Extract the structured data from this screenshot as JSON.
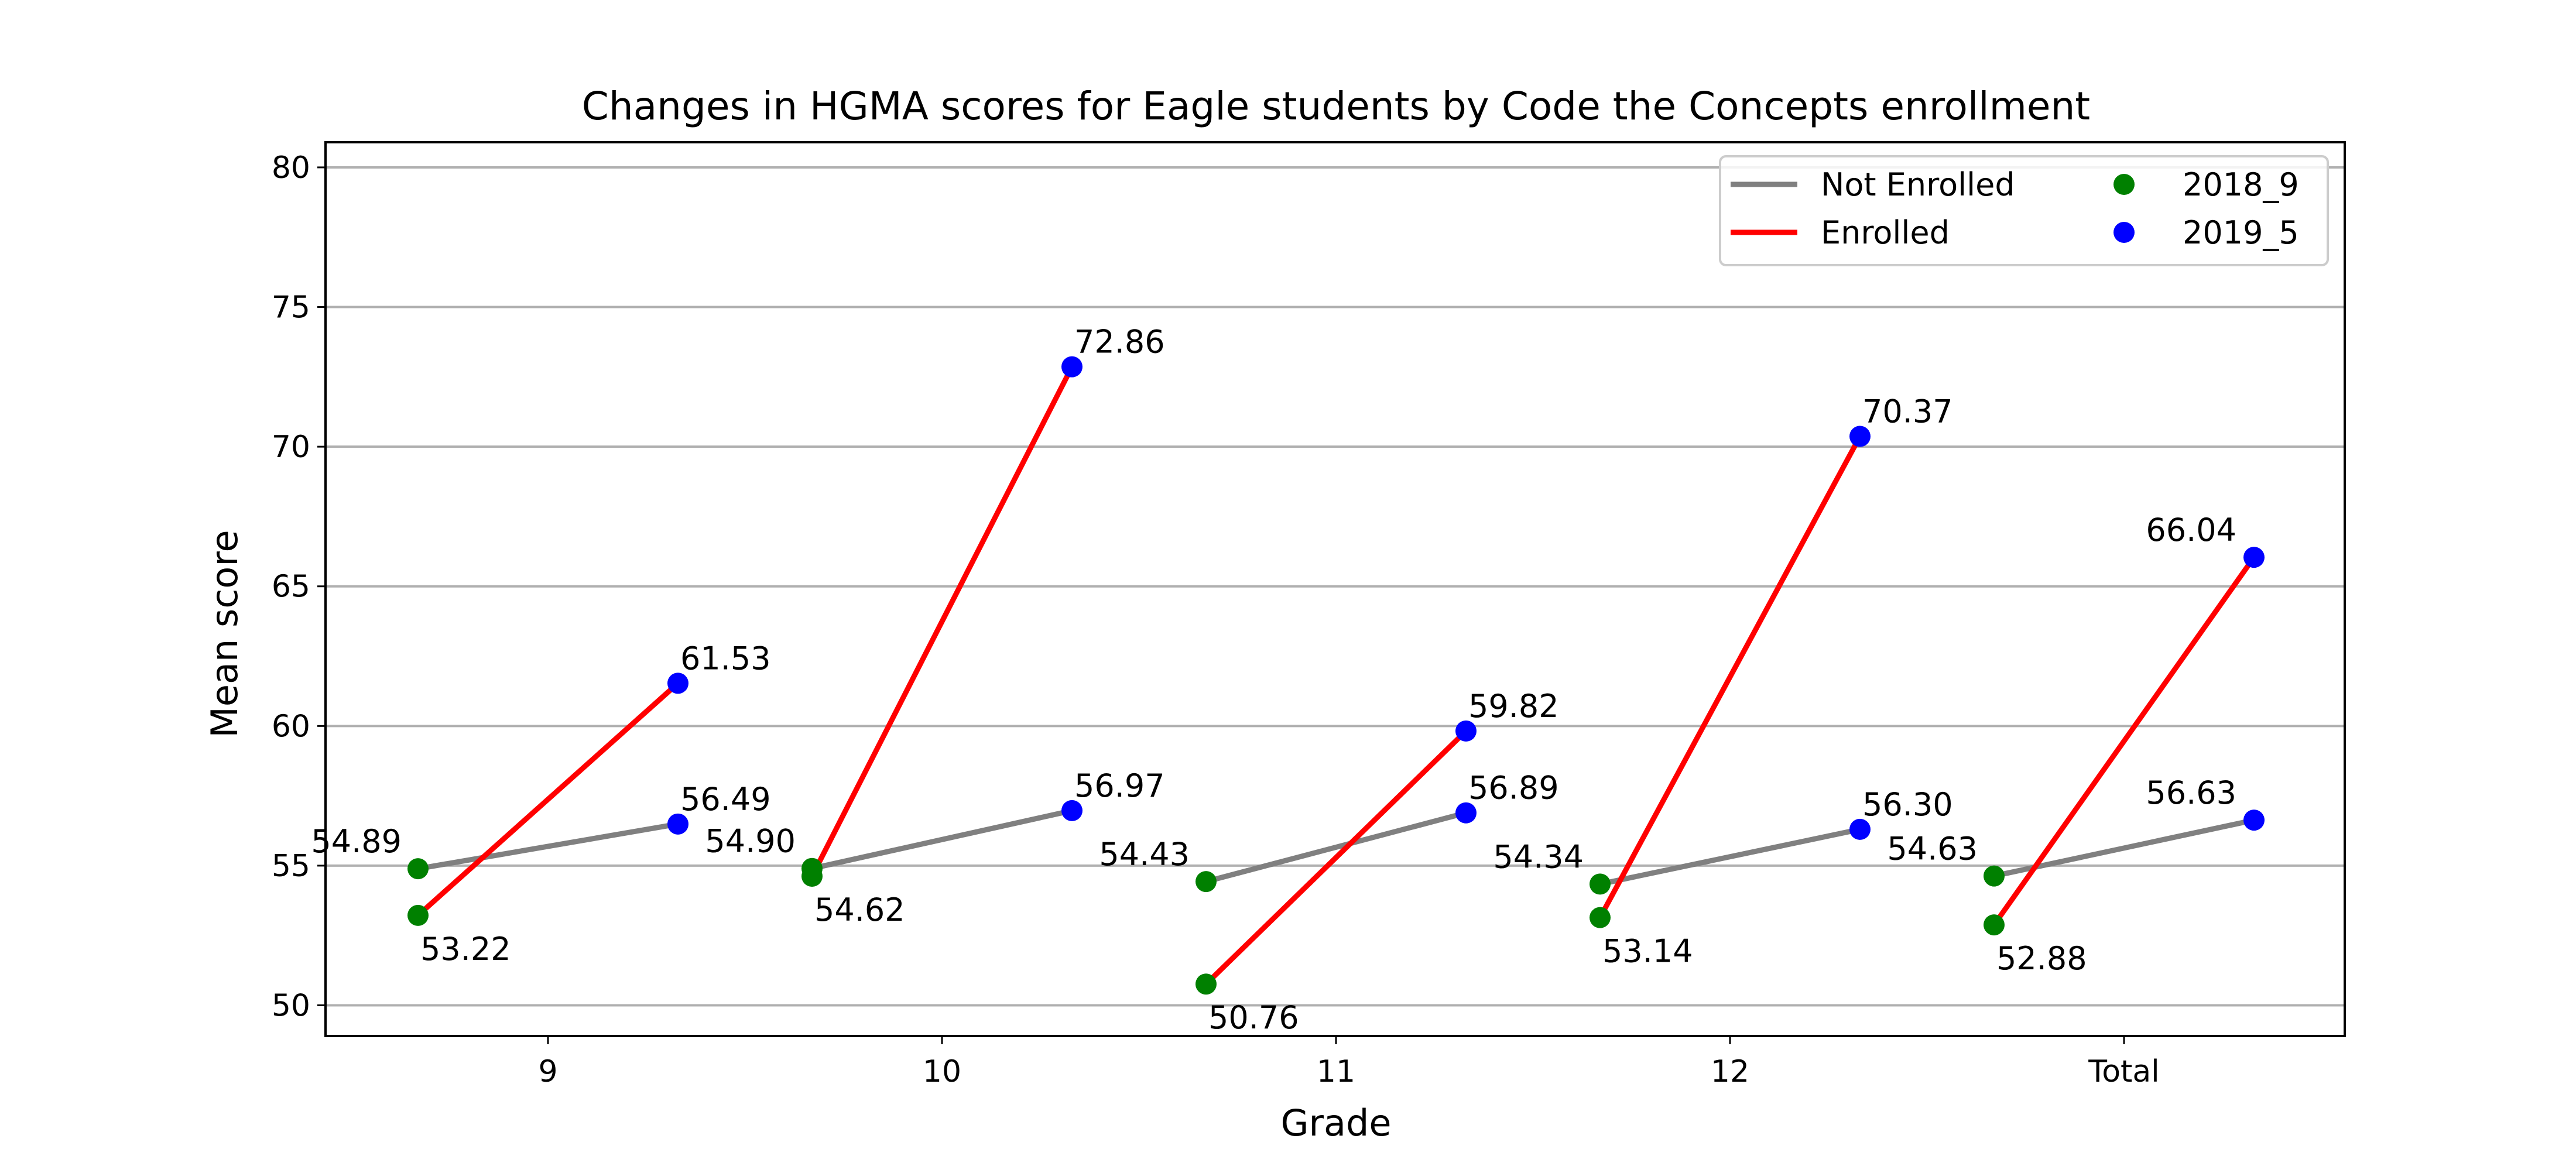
{
  "chart_data": {
    "type": "line",
    "title": "Changes in HGMA scores for Eagle students by Code the Concepts enrollment",
    "xlabel": "Grade",
    "ylabel": "Mean score",
    "categories": [
      "9",
      "10",
      "11",
      "12",
      "Total"
    ],
    "yticks": [
      "50",
      "55",
      "60",
      "65",
      "70",
      "75",
      "80"
    ],
    "ylim": [
      48.9,
      80.9
    ],
    "grid": "horizontal",
    "legend_position": "top-right",
    "legend": {
      "lines": [
        {
          "label": "Not Enrolled",
          "color": "#808080"
        },
        {
          "label": "Enrolled",
          "color": "#ff0000"
        }
      ],
      "markers": [
        {
          "label": "2018_9",
          "color": "#008000"
        },
        {
          "label": "2019_5",
          "color": "#0000ff"
        }
      ]
    },
    "series": [
      {
        "group": "Not Enrolled",
        "color": "#808080",
        "start_color": "#008000",
        "end_color": "#0000ff",
        "start_values": [
          54.89,
          54.9,
          54.43,
          54.34,
          54.63
        ],
        "end_values": [
          56.49,
          56.97,
          56.89,
          56.3,
          56.63
        ],
        "start_labels": [
          "54.89",
          "54.90",
          "54.43",
          "54.34",
          "54.63"
        ],
        "end_labels": [
          "56.49",
          "56.97",
          "56.89",
          "56.30",
          "56.63"
        ]
      },
      {
        "group": "Enrolled",
        "color": "#ff0000",
        "start_color": "#008000",
        "end_color": "#0000ff",
        "start_values": [
          53.22,
          54.62,
          50.76,
          53.14,
          52.88
        ],
        "end_values": [
          61.53,
          72.86,
          59.82,
          70.37,
          66.04
        ],
        "start_labels": [
          "53.22",
          "54.62",
          "50.76",
          "53.14",
          "52.88"
        ],
        "end_labels": [
          "61.53",
          "72.86",
          "59.82",
          "70.37",
          "66.04"
        ]
      }
    ]
  }
}
